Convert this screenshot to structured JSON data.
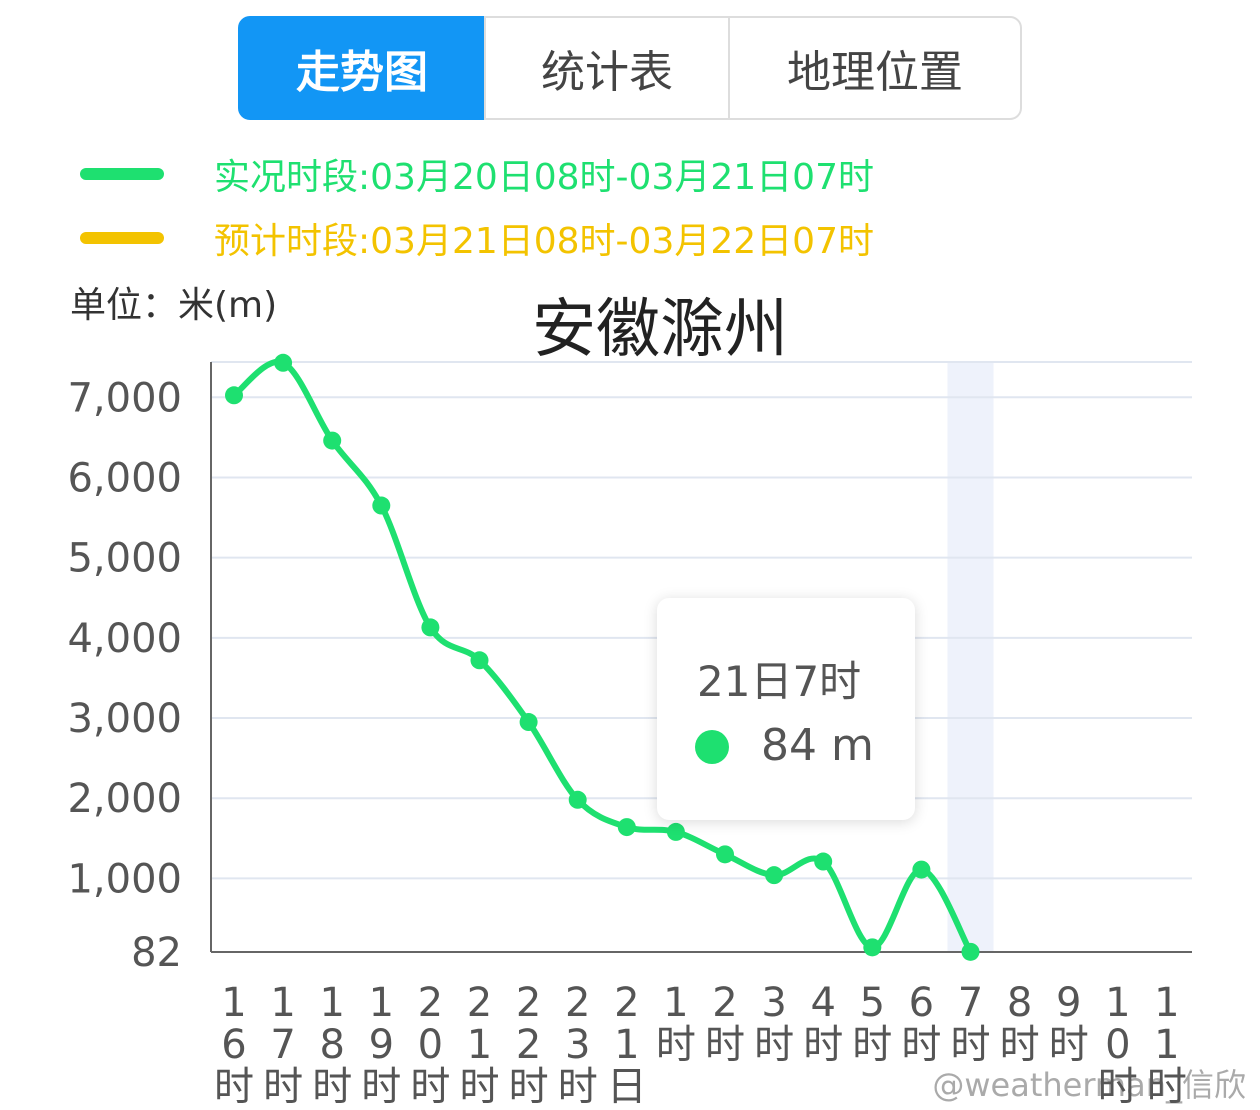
{
  "tabs": [
    "走势图",
    "统计表",
    "地理位置"
  ],
  "unit": "单位：米(m)",
  "watermark": "@weatherman_信欣",
  "chart_data": {
    "type": "line",
    "title": "安徽滁州",
    "categories": [
      "16时",
      "17时",
      "18时",
      "19时",
      "20时",
      "21时",
      "22时",
      "23时",
      "21日",
      "1时",
      "2时",
      "3时",
      "4时",
      "5时",
      "6时",
      "7时",
      "8时",
      "9时",
      "10时",
      "11时"
    ],
    "series": [
      {
        "name": "实况时段:03月20日08时-03月21日07时",
        "color": "#1ee070",
        "values": [
          7025,
          7430,
          6460,
          5650,
          4130,
          3720,
          2950,
          1980,
          1640,
          1580,
          1300,
          1040,
          1210,
          140,
          1110,
          84,
          null,
          null,
          null,
          null
        ]
      },
      {
        "name": "预计时段:03月21日08时-03月22日07时",
        "color": "#f3c300",
        "values": [
          null,
          null,
          null,
          null,
          null,
          null,
          null,
          null,
          null,
          null,
          null,
          null,
          null,
          null,
          null,
          null,
          null,
          null,
          null,
          null
        ]
      }
    ],
    "ylim": [
      82,
      7440
    ],
    "yticks": [
      82,
      {
        "value": 1000,
        "label": "1,000"
      },
      {
        "value": 2000,
        "label": "2,000"
      },
      {
        "value": 3000,
        "label": "3,000"
      },
      {
        "value": 4000,
        "label": "4,000"
      },
      {
        "value": 5000,
        "label": "5,000"
      },
      {
        "value": 6000,
        "label": "6,000"
      },
      {
        "value": 7000,
        "label": "7,000"
      }
    ],
    "grid": true,
    "tooltip": {
      "title": "21日7时",
      "text": "84 m"
    }
  }
}
